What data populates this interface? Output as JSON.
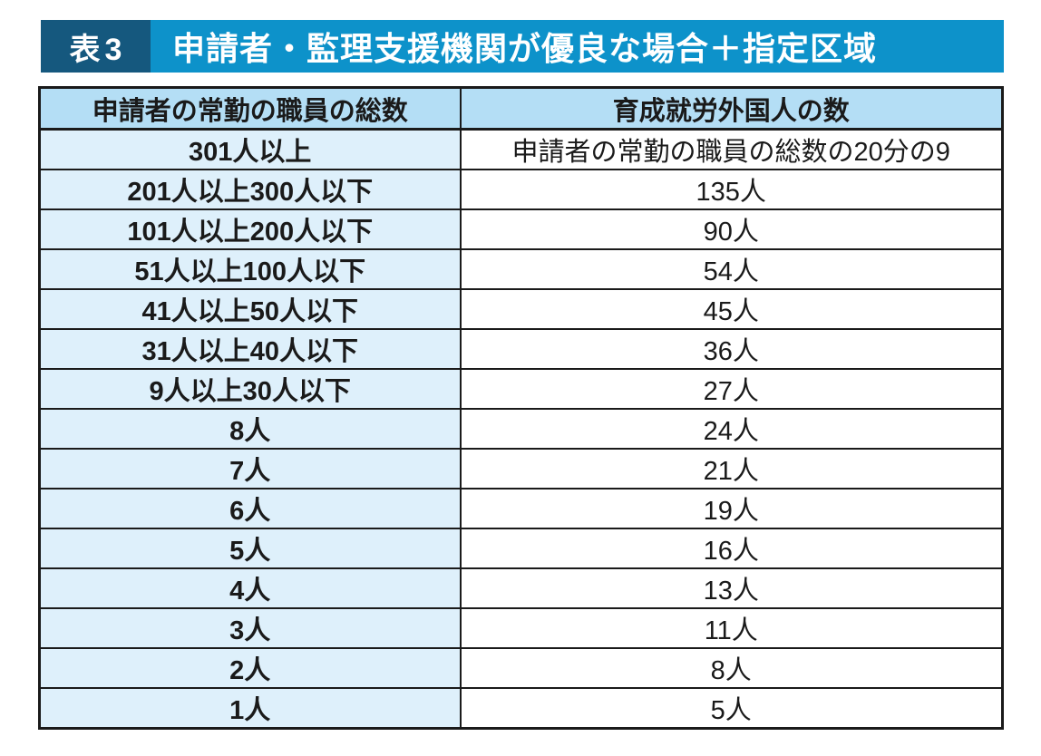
{
  "title": {
    "tag": "表3",
    "text": "申請者・監理支援機関が優良な場合＋指定区域"
  },
  "colors": {
    "title_bar_blue": "#0d92ca",
    "title_tag_dark_blue": "#15587e",
    "header_cell_blue": "#b4def5",
    "left_cell_pale_blue": "#def0fb",
    "border_black": "#1a1a1a"
  },
  "table": {
    "headers": [
      "申請者の常勤の職員の総数",
      "育成就労外国人の数"
    ],
    "rows": [
      {
        "staff_total": "301人以上",
        "worker_count": "申請者の常勤の職員の総数の20分の9"
      },
      {
        "staff_total": "201人以上300人以下",
        "worker_count": "135人"
      },
      {
        "staff_total": "101人以上200人以下",
        "worker_count": "90人"
      },
      {
        "staff_total": "51人以上100人以下",
        "worker_count": "54人"
      },
      {
        "staff_total": "41人以上50人以下",
        "worker_count": "45人"
      },
      {
        "staff_total": "31人以上40人以下",
        "worker_count": "36人"
      },
      {
        "staff_total": "9人以上30人以下",
        "worker_count": "27人"
      },
      {
        "staff_total": "8人",
        "worker_count": "24人"
      },
      {
        "staff_total": "7人",
        "worker_count": "21人"
      },
      {
        "staff_total": "6人",
        "worker_count": "19人"
      },
      {
        "staff_total": "5人",
        "worker_count": "16人"
      },
      {
        "staff_total": "4人",
        "worker_count": "13人"
      },
      {
        "staff_total": "3人",
        "worker_count": "11人"
      },
      {
        "staff_total": "2人",
        "worker_count": "8人"
      },
      {
        "staff_total": "1人",
        "worker_count": "5人"
      }
    ]
  }
}
